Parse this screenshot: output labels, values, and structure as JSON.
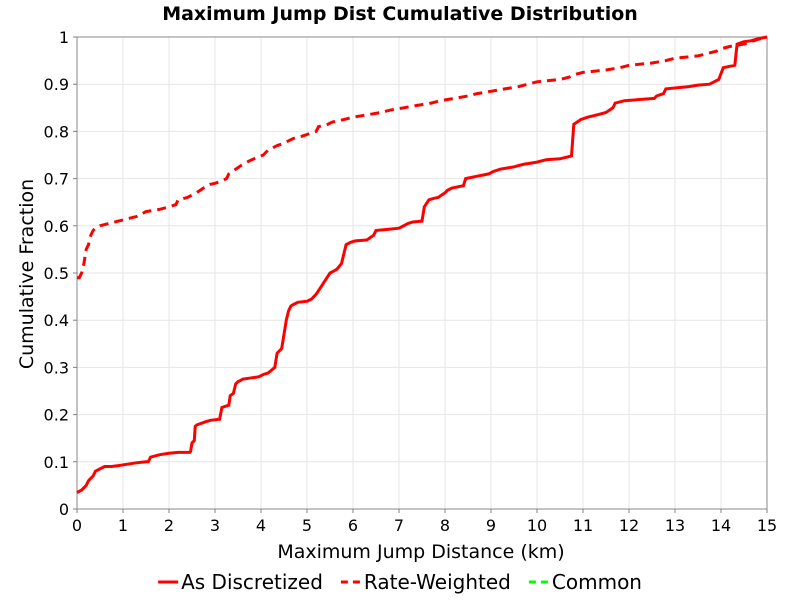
{
  "chart_data": {
    "type": "line",
    "title": "Maximum Jump Dist Cumulative Distribution",
    "xlabel": "Maximum Jump Distance (km)",
    "ylabel": "Cumulative Fraction",
    "xlim": [
      0,
      15
    ],
    "ylim": [
      0,
      1
    ],
    "x_ticks": [
      "0",
      "1",
      "2",
      "3",
      "4",
      "5",
      "6",
      "7",
      "8",
      "9",
      "10",
      "11",
      "12",
      "13",
      "14",
      "15"
    ],
    "y_ticks": [
      "0",
      "0.1",
      "0.2",
      "0.3",
      "0.4",
      "0.5",
      "0.6",
      "0.7",
      "0.8",
      "0.9",
      "1"
    ],
    "grid": true,
    "legend_position": "bottom",
    "series": [
      {
        "name": "As Discretized",
        "color": "#ff0000",
        "dash": "solid",
        "x": [
          0,
          0.1,
          0.2,
          0.25,
          0.3,
          0.35,
          0.4,
          0.5,
          0.6,
          0.75,
          0.9,
          1.1,
          1.3,
          1.5,
          1.55,
          1.6,
          1.8,
          2.0,
          2.2,
          2.45,
          2.47,
          2.5,
          2.55,
          2.57,
          2.6,
          2.8,
          2.9,
          3.1,
          3.15,
          3.3,
          3.33,
          3.4,
          3.45,
          3.5,
          3.55,
          3.6,
          3.8,
          3.95,
          4.05,
          4.15,
          4.3,
          4.35,
          4.45,
          4.5,
          4.55,
          4.6,
          4.65,
          4.7,
          4.8,
          5.0,
          5.1,
          5.2,
          5.3,
          5.5,
          5.6,
          5.65,
          5.75,
          5.8,
          5.85,
          5.95,
          6.05,
          6.3,
          6.45,
          6.5,
          6.7,
          7.0,
          7.2,
          7.3,
          7.5,
          7.55,
          7.65,
          7.75,
          7.85,
          8.0,
          8.05,
          8.15,
          8.4,
          8.45,
          8.7,
          8.95,
          9.05,
          9.2,
          9.5,
          9.7,
          10.0,
          10.2,
          10.5,
          10.75,
          10.8,
          10.95,
          11.1,
          11.3,
          11.5,
          11.65,
          11.7,
          11.9,
          12.3,
          12.55,
          12.6,
          12.75,
          12.8,
          13.3,
          13.5,
          13.75,
          13.85,
          13.95,
          14.05,
          14.3,
          14.35,
          14.5,
          14.65,
          14.75,
          14.9,
          15.0
        ],
        "y": [
          0.035,
          0.04,
          0.05,
          0.06,
          0.065,
          0.07,
          0.08,
          0.085,
          0.09,
          0.09,
          0.092,
          0.095,
          0.098,
          0.1,
          0.1,
          0.11,
          0.115,
          0.118,
          0.12,
          0.12,
          0.122,
          0.14,
          0.145,
          0.175,
          0.178,
          0.185,
          0.188,
          0.19,
          0.215,
          0.22,
          0.24,
          0.245,
          0.265,
          0.27,
          0.272,
          0.275,
          0.278,
          0.28,
          0.285,
          0.288,
          0.3,
          0.33,
          0.34,
          0.37,
          0.4,
          0.42,
          0.43,
          0.433,
          0.438,
          0.44,
          0.445,
          0.455,
          0.47,
          0.5,
          0.505,
          0.508,
          0.52,
          0.54,
          0.56,
          0.565,
          0.568,
          0.57,
          0.58,
          0.59,
          0.592,
          0.595,
          0.605,
          0.608,
          0.61,
          0.64,
          0.655,
          0.658,
          0.66,
          0.67,
          0.675,
          0.68,
          0.685,
          0.7,
          0.705,
          0.71,
          0.715,
          0.72,
          0.725,
          0.73,
          0.735,
          0.74,
          0.742,
          0.748,
          0.815,
          0.825,
          0.83,
          0.835,
          0.84,
          0.85,
          0.86,
          0.865,
          0.868,
          0.87,
          0.875,
          0.88,
          0.89,
          0.895,
          0.898,
          0.9,
          0.905,
          0.91,
          0.935,
          0.94,
          0.985,
          0.99,
          0.992,
          0.995,
          0.998,
          1.0
        ]
      },
      {
        "name": "Rate-Weighted",
        "color": "#ff0000",
        "dash": "dashed",
        "x": [
          0,
          0.05,
          0.1,
          0.15,
          0.2,
          0.25,
          0.3,
          0.35,
          0.4,
          0.5,
          0.7,
          0.9,
          1.1,
          1.3,
          1.5,
          1.8,
          2.0,
          2.15,
          2.2,
          2.4,
          2.6,
          2.75,
          2.9,
          3.0,
          3.15,
          3.25,
          3.3,
          3.45,
          3.6,
          3.8,
          4.05,
          4.15,
          4.35,
          4.5,
          4.6,
          4.7,
          4.9,
          5.2,
          5.25,
          5.45,
          5.55,
          5.8,
          6.0,
          6.3,
          6.6,
          6.8,
          7.1,
          7.4,
          7.7,
          7.9,
          8.2,
          8.5,
          8.7,
          9.0,
          9.3,
          9.6,
          9.8,
          10.0,
          10.5,
          10.7,
          10.8,
          11.0,
          11.5,
          11.8,
          12.0,
          12.5,
          12.8,
          13.0,
          13.5,
          13.9,
          14.0,
          14.2,
          14.5,
          14.8,
          15.0
        ],
        "y": [
          0.49,
          0.49,
          0.5,
          0.52,
          0.55,
          0.56,
          0.58,
          0.59,
          0.595,
          0.6,
          0.605,
          0.61,
          0.615,
          0.62,
          0.63,
          0.635,
          0.64,
          0.645,
          0.655,
          0.66,
          0.67,
          0.68,
          0.688,
          0.69,
          0.695,
          0.7,
          0.71,
          0.72,
          0.73,
          0.74,
          0.75,
          0.76,
          0.77,
          0.775,
          0.78,
          0.785,
          0.79,
          0.8,
          0.81,
          0.815,
          0.82,
          0.825,
          0.83,
          0.835,
          0.84,
          0.845,
          0.85,
          0.855,
          0.86,
          0.865,
          0.87,
          0.875,
          0.88,
          0.885,
          0.89,
          0.895,
          0.9,
          0.905,
          0.91,
          0.915,
          0.92,
          0.925,
          0.93,
          0.935,
          0.94,
          0.945,
          0.95,
          0.955,
          0.96,
          0.97,
          0.975,
          0.98,
          0.985,
          0.995,
          1.0
        ]
      },
      {
        "name": "Common",
        "color": "#00ff00",
        "dash": "dashed",
        "x": [],
        "y": []
      }
    ]
  }
}
